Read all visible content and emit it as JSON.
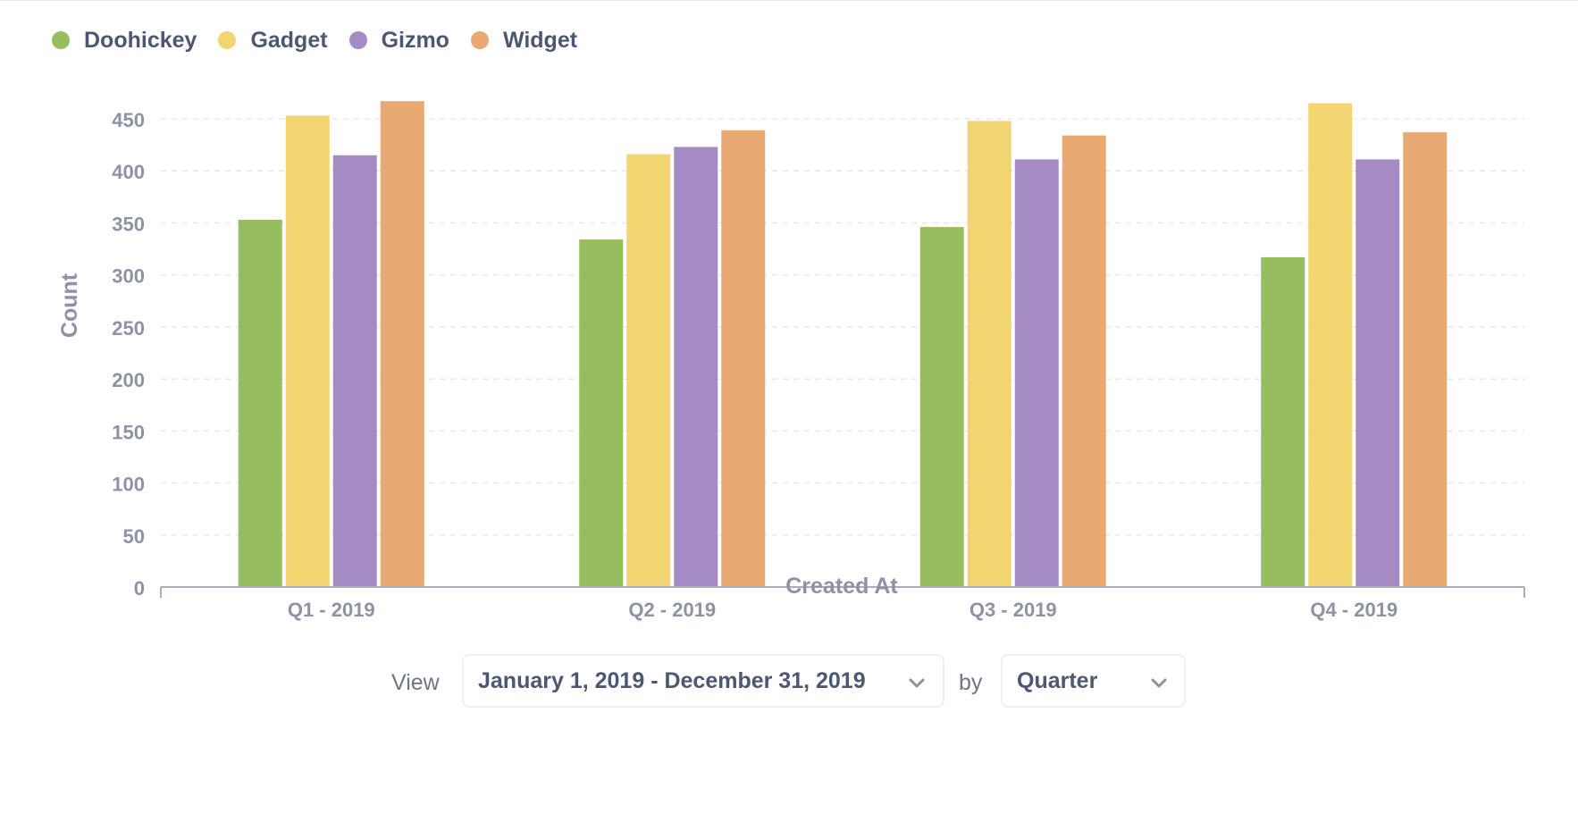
{
  "chart_data": {
    "type": "bar",
    "categories": [
      "Q1 - 2019",
      "Q2 - 2019",
      "Q3 - 2019",
      "Q4 - 2019"
    ],
    "series": [
      {
        "name": "Doohickey",
        "color": "#96be5f",
        "values": [
          353,
          334,
          346,
          317
        ]
      },
      {
        "name": "Gadget",
        "color": "#f2d571",
        "values": [
          453,
          416,
          448,
          465
        ]
      },
      {
        "name": "Gizmo",
        "color": "#a58bc3",
        "values": [
          415,
          423,
          411,
          411
        ]
      },
      {
        "name": "Widget",
        "color": "#e8a973",
        "values": [
          467,
          439,
          434,
          437
        ]
      }
    ],
    "xlabel": "Created At",
    "ylabel": "Count",
    "ylim": [
      0,
      450
    ],
    "yticks": [
      0,
      50,
      100,
      150,
      200,
      250,
      300,
      350,
      400,
      450
    ],
    "grid": true,
    "legend_position": "top-left"
  },
  "controls": {
    "view_label": "View",
    "date_range": "January 1, 2019 - December 31, 2019",
    "by_label": "by",
    "granularity": "Quarter",
    "chevron_icon": "chevron-down-icon"
  }
}
